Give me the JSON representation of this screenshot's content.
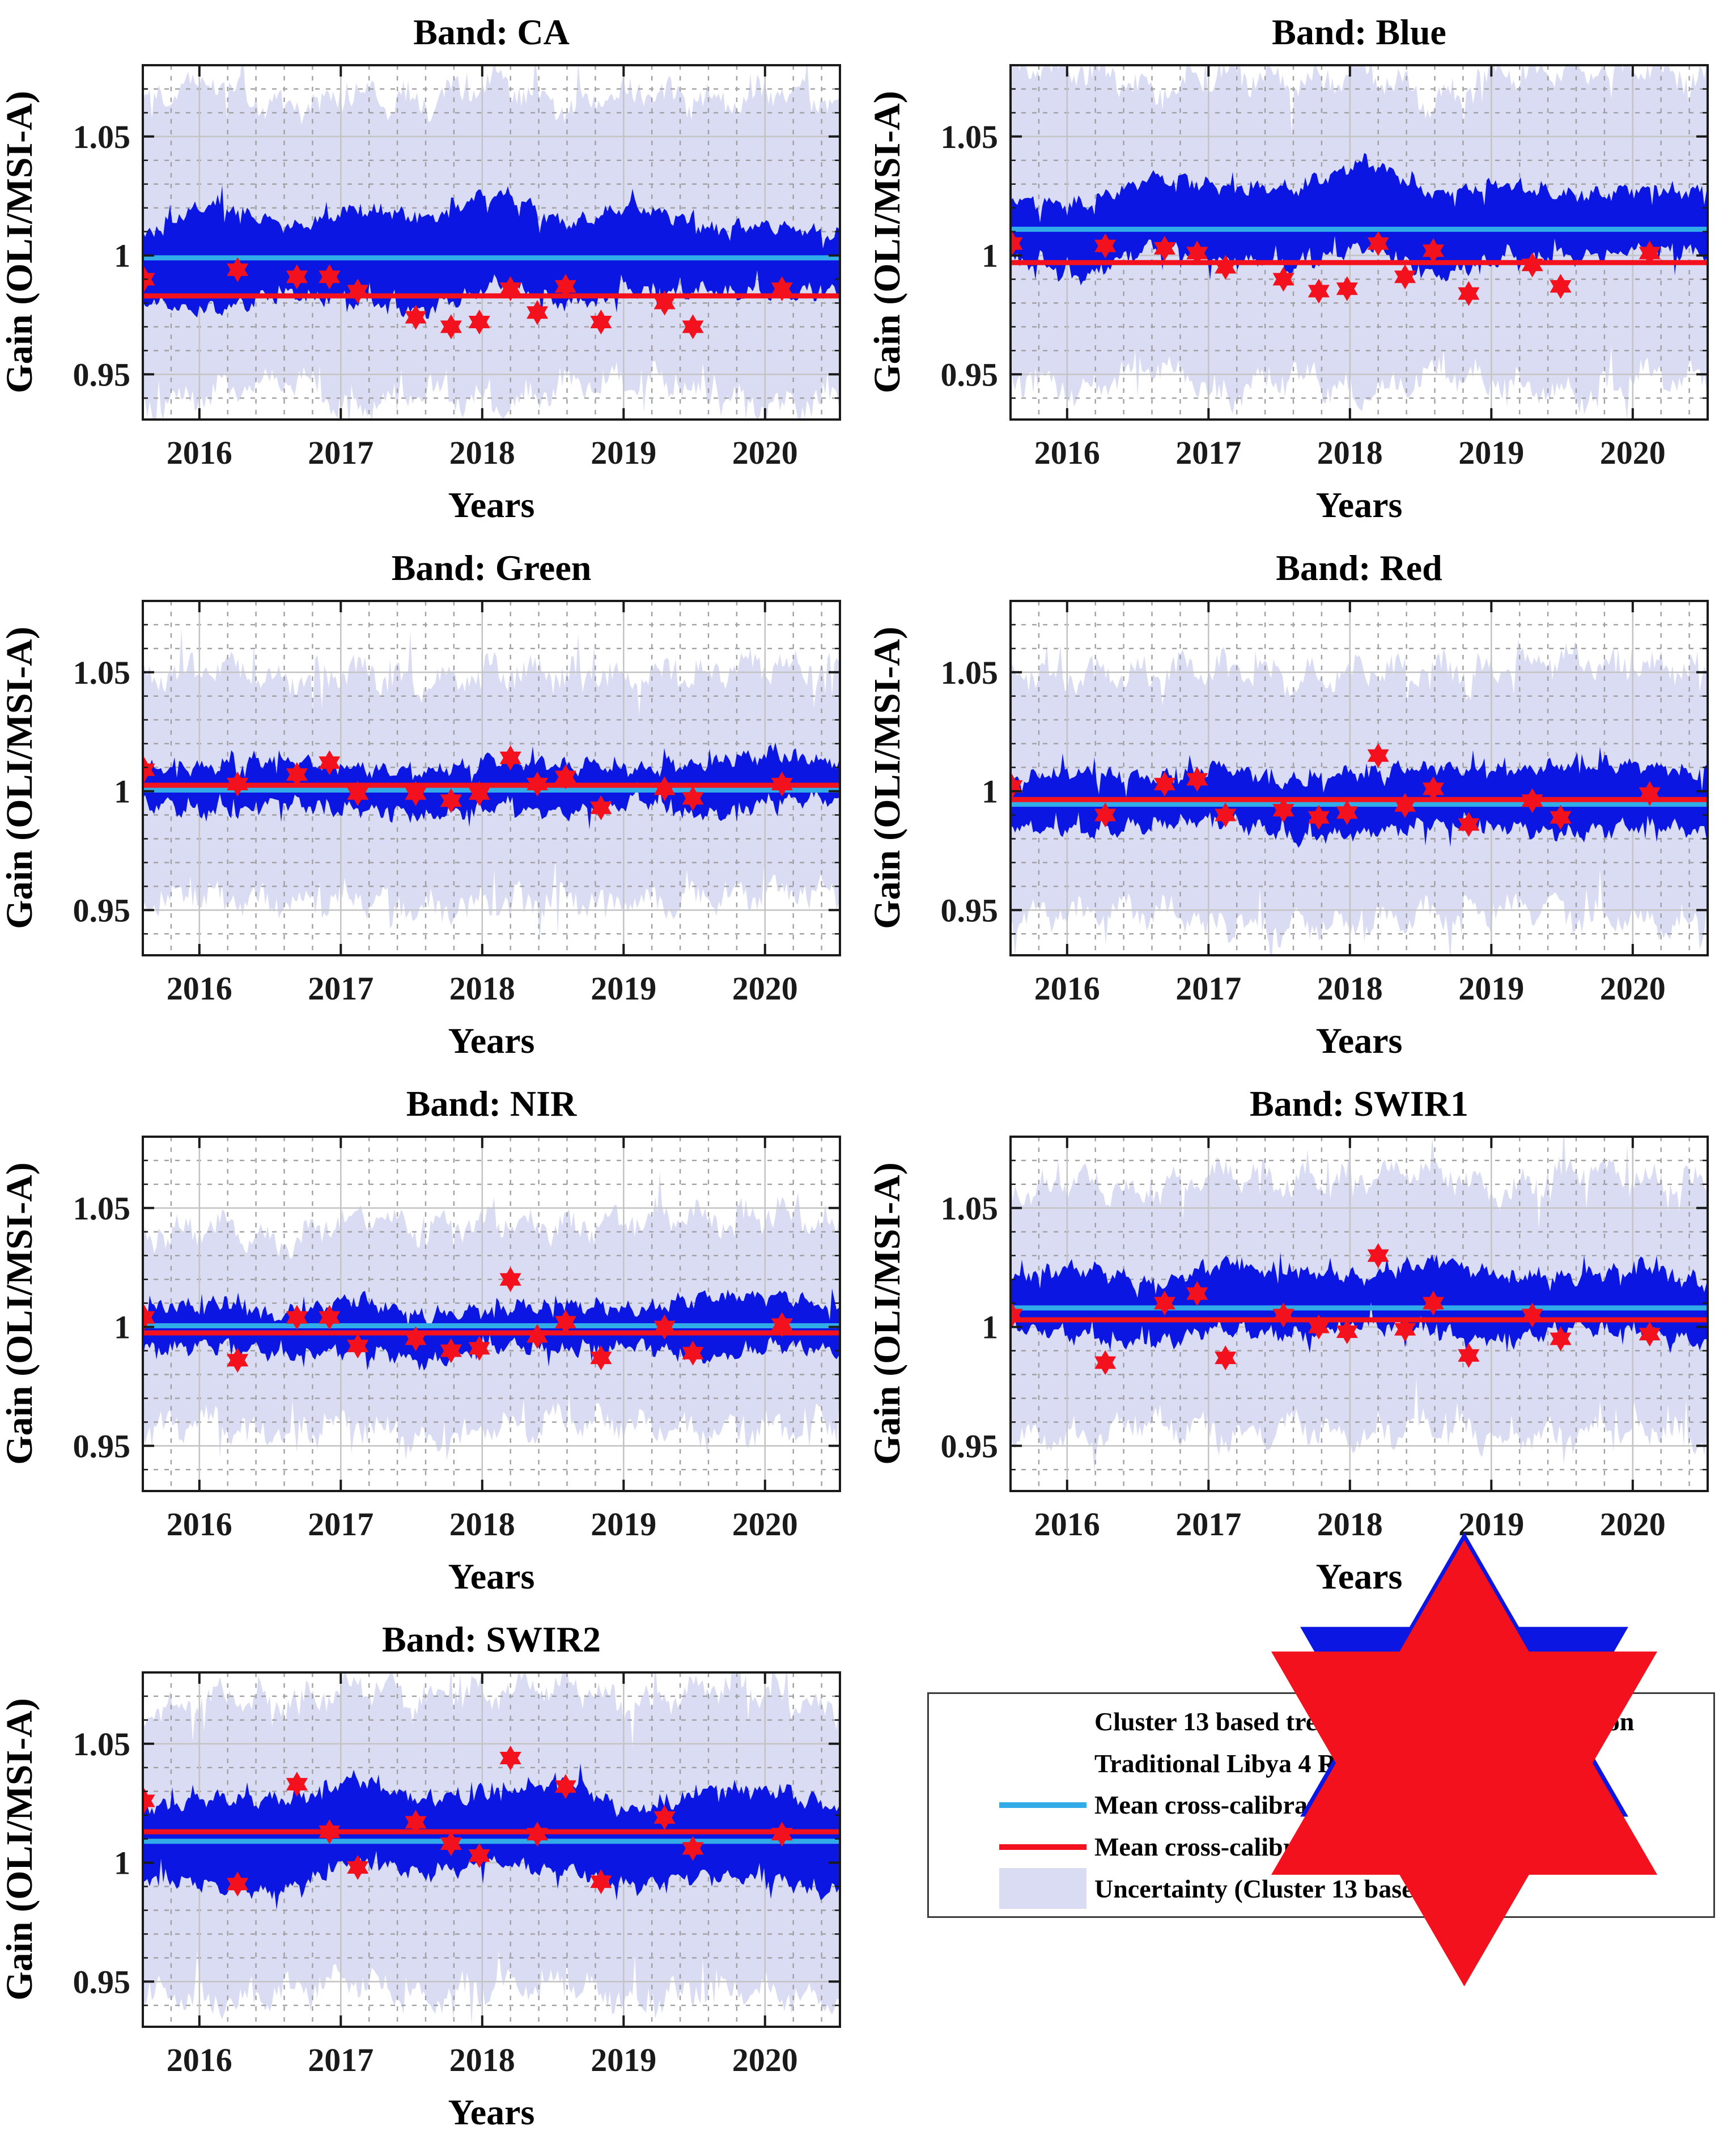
{
  "figure": {
    "ylabel": "Gain (OLI/MSI-A)",
    "xlabel": "Years",
    "ytick_labels": [
      "0.95",
      "1",
      "1.05"
    ],
    "ytick_values": [
      0.95,
      1.0,
      1.05
    ],
    "xtick_labels": [
      "2016",
      "2017",
      "2018",
      "2019",
      "2020"
    ],
    "xtick_values": [
      2016,
      2017,
      2018,
      2019,
      2020
    ],
    "ylim": [
      0.931,
      1.08
    ],
    "xlim": [
      2015.6,
      2020.53
    ],
    "grid": "on",
    "envelope_x": [
      2015.6,
      2016.1,
      2016.6,
      2017.1,
      2017.6,
      2018.1,
      2018.6,
      2019.1,
      2019.6,
      2020.1,
      2020.53
    ],
    "libya4_x": [
      2015.61,
      2016.27,
      2016.69,
      2016.92,
      2017.12,
      2017.53,
      2017.78,
      2017.98,
      2018.2,
      2018.39,
      2018.59,
      2018.84,
      2019.29,
      2019.49,
      2020.12
    ]
  },
  "colors": {
    "cluster13_scatter": "#0b16e3",
    "libya4_scatter": "#f2111c",
    "cluster13_mean_line": "#31ace8",
    "libya4_mean_line": "#f2111c",
    "uncertainty_fill": "#d9dcf3",
    "grid_major": "#c4c4c4",
    "grid_minor": "#a0a0a0",
    "axis": "#1a1a1a"
  },
  "chart_data": [
    {
      "type": "scatter",
      "band": "CA",
      "title": "Band: CA",
      "seed": 101,
      "cluster13_mean_gain": 0.999,
      "libya4_mean_gain": 0.983,
      "libya4_points_y": [
        0.99,
        0.994,
        0.991,
        0.991,
        0.985,
        0.974,
        0.97,
        0.972,
        0.986,
        0.976,
        0.987,
        0.972,
        0.98,
        0.97,
        0.986
      ],
      "cluster13_cloud_upper": [
        1.009,
        1.022,
        1.012,
        1.019,
        1.016,
        1.027,
        1.013,
        1.021,
        1.011,
        1.013,
        1.009
      ],
      "cluster13_cloud_lower": [
        0.98,
        0.977,
        0.984,
        0.981,
        0.977,
        0.988,
        0.979,
        0.986,
        0.985,
        0.984,
        0.985
      ],
      "uncertainty_upper": [
        1.066,
        1.074,
        1.061,
        1.07,
        1.064,
        1.074,
        1.061,
        1.07,
        1.064,
        1.069,
        1.064
      ],
      "uncertainty_lower": [
        0.936,
        0.942,
        0.949,
        0.936,
        0.945,
        0.936,
        0.945,
        0.949,
        0.941,
        0.936,
        0.941
      ]
    },
    {
      "type": "scatter",
      "band": "Blue",
      "title": "Band: Blue",
      "seed": 202,
      "cluster13_mean_gain": 1.011,
      "libya4_mean_gain": 0.997,
      "libya4_points_y": [
        1.005,
        1.004,
        1.003,
        1.001,
        0.995,
        0.99,
        0.985,
        0.986,
        1.005,
        0.991,
        1.002,
        0.984,
        0.996,
        0.987,
        1.001
      ],
      "cluster13_cloud_upper": [
        1.024,
        1.021,
        1.034,
        1.029,
        1.028,
        1.04,
        1.026,
        1.03,
        1.025,
        1.028,
        1.026
      ],
      "cluster13_cloud_lower": [
        0.998,
        0.99,
        1.004,
        0.999,
        0.996,
        1.004,
        0.991,
        1.0,
        0.999,
        1.003,
        1.0
      ],
      "uncertainty_upper": [
        1.078,
        1.079,
        1.068,
        1.077,
        1.072,
        1.079,
        1.064,
        1.077,
        1.077,
        1.079,
        1.073
      ],
      "uncertainty_lower": [
        0.95,
        0.941,
        0.956,
        0.941,
        0.95,
        0.941,
        0.951,
        0.946,
        0.941,
        0.951,
        0.946
      ]
    },
    {
      "type": "scatter",
      "band": "Green",
      "title": "Band: Green",
      "seed": 303,
      "cluster13_mean_gain": 1.0005,
      "libya4_mean_gain": 1.0025,
      "libya4_points_y": [
        1.009,
        1.003,
        1.007,
        1.012,
        0.999,
        0.999,
        0.996,
        0.999,
        1.014,
        1.003,
        1.006,
        0.993,
        1.001,
        0.997,
        1.003
      ],
      "cluster13_cloud_upper": [
        1.009,
        1.011,
        1.014,
        1.01,
        1.008,
        1.013,
        1.011,
        1.01,
        1.012,
        1.016,
        1.012
      ],
      "cluster13_cloud_lower": [
        0.995,
        0.991,
        0.995,
        0.992,
        0.99,
        0.993,
        0.991,
        0.995,
        0.99,
        0.996,
        0.997
      ],
      "uncertainty_upper": [
        1.048,
        1.052,
        1.047,
        1.05,
        1.045,
        1.051,
        1.049,
        1.048,
        1.05,
        1.053,
        1.05
      ],
      "uncertainty_lower": [
        0.953,
        0.956,
        0.953,
        0.955,
        0.95,
        0.954,
        0.955,
        0.952,
        0.955,
        0.958,
        0.96
      ]
    },
    {
      "type": "scatter",
      "band": "Red",
      "title": "Band: Red",
      "seed": 404,
      "cluster13_mean_gain": 0.9945,
      "libya4_mean_gain": 0.9965,
      "libya4_points_y": [
        1.002,
        0.99,
        1.003,
        1.005,
        0.99,
        0.992,
        0.989,
        0.991,
        1.015,
        0.994,
        1.001,
        0.986,
        0.996,
        0.989,
        0.999
      ],
      "cluster13_cloud_upper": [
        1.005,
        1.008,
        1.005,
        1.01,
        1.004,
        1.008,
        1.01,
        1.008,
        1.012,
        1.011,
        1.008
      ],
      "cluster13_cloud_lower": [
        0.986,
        0.983,
        0.986,
        0.988,
        0.98,
        0.983,
        0.986,
        0.985,
        0.982,
        0.986,
        0.982
      ],
      "uncertainty_upper": [
        1.05,
        1.048,
        1.05,
        1.052,
        1.047,
        1.05,
        1.05,
        1.052,
        1.056,
        1.051,
        1.052
      ],
      "uncertainty_lower": [
        0.946,
        0.948,
        0.95,
        0.945,
        0.942,
        0.945,
        0.948,
        0.95,
        0.948,
        0.945,
        0.944
      ]
    },
    {
      "type": "scatter",
      "band": "NIR",
      "title": "Band: NIR",
      "seed": 505,
      "cluster13_mean_gain": 1.0005,
      "libya4_mean_gain": 0.9975,
      "libya4_points_y": [
        1.004,
        0.986,
        1.004,
        1.004,
        0.992,
        0.995,
        0.99,
        0.991,
        1.02,
        0.996,
        1.002,
        0.987,
        1.0,
        0.989,
        1.001
      ],
      "cluster13_cloud_upper": [
        1.007,
        1.01,
        1.005,
        1.012,
        1.004,
        1.008,
        1.01,
        1.007,
        1.012,
        1.013,
        1.008
      ],
      "cluster13_cloud_lower": [
        0.99,
        0.992,
        0.988,
        0.99,
        0.985,
        0.992,
        0.99,
        0.992,
        0.987,
        0.992,
        0.99
      ],
      "uncertainty_upper": [
        1.036,
        1.043,
        1.035,
        1.048,
        1.04,
        1.045,
        1.041,
        1.046,
        1.045,
        1.048,
        1.042
      ],
      "uncertainty_lower": [
        0.956,
        0.96,
        0.955,
        0.96,
        0.95,
        0.958,
        0.96,
        0.96,
        0.955,
        0.958,
        0.96
      ]
    },
    {
      "type": "scatter",
      "band": "SWIR1",
      "title": "Band: SWIR1",
      "seed": 606,
      "cluster13_mean_gain": 1.008,
      "libya4_mean_gain": 1.003,
      "libya4_points_y": [
        1.005,
        0.985,
        1.01,
        1.014,
        0.987,
        1.005,
        1.0,
        0.998,
        1.03,
        0.999,
        1.01,
        0.988,
        1.005,
        0.995,
        0.997
      ],
      "cluster13_cloud_upper": [
        1.021,
        1.025,
        1.018,
        1.026,
        1.024,
        1.021,
        1.028,
        1.022,
        1.021,
        1.026,
        1.018
      ],
      "cluster13_cloud_lower": [
        1.0,
        0.996,
        0.993,
        1.0,
        0.996,
        1.001,
        0.998,
        0.993,
        1.0,
        0.998,
        0.993
      ],
      "uncertainty_upper": [
        1.056,
        1.061,
        1.056,
        1.066,
        1.06,
        1.063,
        1.066,
        1.056,
        1.066,
        1.062,
        1.06
      ],
      "uncertainty_lower": [
        0.956,
        0.952,
        0.96,
        0.955,
        0.958,
        0.955,
        0.958,
        0.952,
        0.955,
        0.957,
        0.953
      ]
    },
    {
      "type": "scatter",
      "band": "SWIR2",
      "title": "Band: SWIR2",
      "seed": 707,
      "cluster13_mean_gain": 1.009,
      "libya4_mean_gain": 1.013,
      "libya4_points_y": [
        1.026,
        0.991,
        1.033,
        1.013,
        0.998,
        1.017,
        1.008,
        1.003,
        1.044,
        1.012,
        1.032,
        0.992,
        1.019,
        1.006,
        1.012
      ],
      "cluster13_cloud_upper": [
        1.023,
        1.028,
        1.026,
        1.035,
        1.026,
        1.03,
        1.035,
        1.02,
        1.032,
        1.03,
        1.022
      ],
      "cluster13_cloud_lower": [
        0.994,
        0.99,
        0.988,
        1.0,
        0.995,
        1.0,
        0.996,
        0.99,
        0.995,
        0.992,
        0.987
      ],
      "uncertainty_upper": [
        1.062,
        1.07,
        1.066,
        1.075,
        1.069,
        1.072,
        1.075,
        1.065,
        1.075,
        1.07,
        1.065
      ],
      "uncertainty_lower": [
        0.946,
        0.941,
        0.946,
        0.951,
        0.944,
        0.949,
        0.951,
        0.941,
        0.948,
        0.945,
        0.941
      ]
    }
  ],
  "legend": {
    "items": [
      {
        "marker": "star",
        "color": "#0b16e3",
        "label": "Cluster 13 based trend to trend cross-calibration"
      },
      {
        "marker": "star",
        "color": "#f2111c",
        "label": "Traditional Libya 4 ROI  cross-calibration"
      },
      {
        "marker": "line",
        "color": "#31ace8",
        "label": "Mean cross-calibration gain (Cluster 13 based)"
      },
      {
        "marker": "line",
        "color": "#f2111c",
        "label": "Mean cross-calibration gain (Libya 4 ROI based)"
      },
      {
        "marker": "patch",
        "color": "#d9dcf3",
        "label": "Uncertainty (Cluster 13 based)"
      }
    ]
  }
}
